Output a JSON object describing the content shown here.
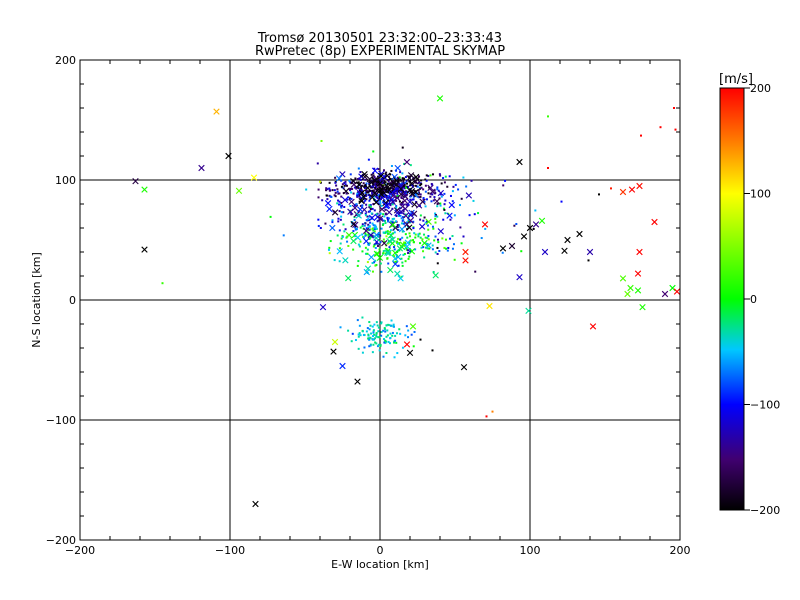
{
  "chart_data": {
    "type": "scatter",
    "title": "Tromsø 20130501 23:32:00–23:33:43",
    "subtitle": "RwPretec (8p) EXPERIMENTAL SKYMAP",
    "xlabel": "E-W location [km]",
    "ylabel": "N-S location [km]",
    "xlim": [
      -200,
      200
    ],
    "ylim": [
      -200,
      200
    ],
    "xticks": [
      "-200",
      "-100",
      "0",
      "100",
      "200"
    ],
    "yticks": [
      "-200",
      "-100",
      "0",
      "100",
      "200"
    ],
    "grid": true,
    "colorbar": {
      "label": "[m/s]",
      "min": -200,
      "max": 200,
      "ticks": [
        "-200",
        "-100",
        "0",
        "100",
        "200"
      ],
      "colors": [
        "#000000",
        "#400070",
        "#0000ff",
        "#00c8ff",
        "#00ff00",
        "#ffff00",
        "#ff8000",
        "#ff0000"
      ]
    },
    "clusters": [
      {
        "x": 5,
        "y": 92,
        "sx": 18,
        "sy": 6,
        "n": 320,
        "v": -130,
        "vs": 35,
        "marker": "dot"
      },
      {
        "x": -5,
        "y": 80,
        "sx": 16,
        "sy": 10,
        "n": 150,
        "v": -120,
        "vs": 30,
        "marker": "dot"
      },
      {
        "x": 10,
        "y": 50,
        "sx": 18,
        "sy": 12,
        "n": 200,
        "v": -10,
        "vs": 35,
        "marker": "dot"
      },
      {
        "x": 0,
        "y": 65,
        "sx": 12,
        "sy": 8,
        "n": 80,
        "v": -60,
        "vs": 25,
        "marker": "dot"
      },
      {
        "x": 5,
        "y": 97,
        "sx": 14,
        "sy": 4,
        "n": 110,
        "v": -190,
        "vs": 12,
        "marker": "dot"
      },
      {
        "x": 0,
        "y": -30,
        "sx": 10,
        "sy": 7,
        "n": 120,
        "v": -40,
        "vs": 20,
        "marker": "dot"
      },
      {
        "x": 40,
        "y": 70,
        "sx": 25,
        "sy": 20,
        "n": 70,
        "v": -100,
        "vs": 60,
        "marker": "dot"
      },
      {
        "x": 0,
        "y": 80,
        "sx": 30,
        "sy": 25,
        "n": 60,
        "v": -50,
        "vs": 60,
        "marker": "dot"
      },
      {
        "x": 5,
        "y": 80,
        "sx": 20,
        "sy": 15,
        "n": 90,
        "v": -130,
        "vs": 35,
        "marker": "cross"
      },
      {
        "x": 5,
        "y": 95,
        "sx": 12,
        "sy": 5,
        "n": 40,
        "v": -195,
        "vs": 8,
        "marker": "cross"
      },
      {
        "x": 5,
        "y": 40,
        "sx": 15,
        "sy": 12,
        "n": 40,
        "v": -20,
        "vs": 30,
        "marker": "cross"
      }
    ],
    "points": [
      {
        "x": -109,
        "y": 157,
        "v": 130,
        "m": "cross"
      },
      {
        "x": -101,
        "y": 120,
        "v": -200,
        "m": "cross"
      },
      {
        "x": -163,
        "y": 99,
        "v": -170,
        "m": "cross"
      },
      {
        "x": -157,
        "y": 92,
        "v": 10,
        "m": "cross"
      },
      {
        "x": -119,
        "y": 110,
        "v": -140,
        "m": "cross"
      },
      {
        "x": -157,
        "y": 42,
        "v": -200,
        "m": "cross"
      },
      {
        "x": -145,
        "y": 14,
        "v": 20,
        "m": "dot"
      },
      {
        "x": -84,
        "y": 102,
        "v": 100,
        "m": "cross"
      },
      {
        "x": -94,
        "y": 91,
        "v": 40,
        "m": "cross"
      },
      {
        "x": -83,
        "y": -170,
        "v": -200,
        "m": "cross"
      },
      {
        "x": -15,
        "y": -68,
        "v": -200,
        "m": "cross"
      },
      {
        "x": -38,
        "y": -6,
        "v": -120,
        "m": "cross"
      },
      {
        "x": -31,
        "y": -43,
        "v": -200,
        "m": "cross"
      },
      {
        "x": -25,
        "y": -55,
        "v": -90,
        "m": "cross"
      },
      {
        "x": -30,
        "y": -35,
        "v": 80,
        "m": "cross"
      },
      {
        "x": 40,
        "y": 168,
        "v": 10,
        "m": "cross"
      },
      {
        "x": 93,
        "y": 115,
        "v": -200,
        "m": "cross"
      },
      {
        "x": 108,
        "y": 66,
        "v": 10,
        "m": "cross"
      },
      {
        "x": 93,
        "y": 19,
        "v": -120,
        "m": "cross"
      },
      {
        "x": 73,
        "y": -5,
        "v": 110,
        "m": "cross"
      },
      {
        "x": 99,
        "y": -9,
        "v": -30,
        "m": "cross"
      },
      {
        "x": 56,
        "y": -56,
        "v": -200,
        "m": "cross"
      },
      {
        "x": 70,
        "y": 63,
        "v": 200,
        "m": "cross"
      },
      {
        "x": 57,
        "y": 40,
        "v": 190,
        "m": "cross"
      },
      {
        "x": 57,
        "y": 33,
        "v": 195,
        "m": "cross"
      },
      {
        "x": 82,
        "y": 43,
        "v": -200,
        "m": "cross"
      },
      {
        "x": 88,
        "y": 45,
        "v": -180,
        "m": "cross"
      },
      {
        "x": 96,
        "y": 53,
        "v": -200,
        "m": "cross"
      },
      {
        "x": 100,
        "y": 60,
        "v": -200,
        "m": "cross"
      },
      {
        "x": 104,
        "y": 63,
        "v": -140,
        "m": "cross"
      },
      {
        "x": 110,
        "y": 40,
        "v": -120,
        "m": "cross"
      },
      {
        "x": 125,
        "y": 50,
        "v": -200,
        "m": "cross"
      },
      {
        "x": 133,
        "y": 55,
        "v": -200,
        "m": "cross"
      },
      {
        "x": 140,
        "y": 40,
        "v": -130,
        "m": "cross"
      },
      {
        "x": 123,
        "y": 41,
        "v": -200,
        "m": "cross"
      },
      {
        "x": 142,
        "y": -22,
        "v": 200,
        "m": "cross"
      },
      {
        "x": 162,
        "y": 90,
        "v": 180,
        "m": "cross"
      },
      {
        "x": 168,
        "y": 92,
        "v": 200,
        "m": "cross"
      },
      {
        "x": 173,
        "y": 95,
        "v": 195,
        "m": "cross"
      },
      {
        "x": 183,
        "y": 65,
        "v": 200,
        "m": "cross"
      },
      {
        "x": 173,
        "y": 40,
        "v": 200,
        "m": "cross"
      },
      {
        "x": 172,
        "y": 22,
        "v": 200,
        "m": "cross"
      },
      {
        "x": 162,
        "y": 18,
        "v": 30,
        "m": "cross"
      },
      {
        "x": 165,
        "y": 5,
        "v": 40,
        "m": "cross"
      },
      {
        "x": 167,
        "y": 10,
        "v": 20,
        "m": "cross"
      },
      {
        "x": 172,
        "y": 8,
        "v": 10,
        "m": "cross"
      },
      {
        "x": 175,
        "y": -6,
        "v": 10,
        "m": "cross"
      },
      {
        "x": 190,
        "y": 5,
        "v": -150,
        "m": "cross"
      },
      {
        "x": 195,
        "y": 10,
        "v": 0,
        "m": "cross"
      },
      {
        "x": 198,
        "y": 7,
        "v": 200,
        "m": "cross"
      },
      {
        "x": 174,
        "y": 137,
        "v": 200,
        "m": "dot"
      },
      {
        "x": 187,
        "y": 144,
        "v": 200,
        "m": "dot"
      },
      {
        "x": 196,
        "y": 160,
        "v": 200,
        "m": "dot"
      },
      {
        "x": 197,
        "y": 142,
        "v": 200,
        "m": "dot"
      },
      {
        "x": 112,
        "y": 153,
        "v": 20,
        "m": "dot"
      },
      {
        "x": 154,
        "y": 93,
        "v": 190,
        "m": "dot"
      },
      {
        "x": 71,
        "y": -97,
        "v": 200,
        "m": "dot"
      },
      {
        "x": 75,
        "y": -93,
        "v": 150,
        "m": "dot"
      },
      {
        "x": 139,
        "y": 33,
        "v": -200,
        "m": "dot"
      },
      {
        "x": 112,
        "y": 110,
        "v": 200,
        "m": "dot"
      },
      {
        "x": 146,
        "y": 88,
        "v": -200,
        "m": "dot"
      },
      {
        "x": 121,
        "y": 82,
        "v": -100,
        "m": "dot"
      },
      {
        "x": 27,
        "y": -33,
        "v": -200,
        "m": "dot"
      },
      {
        "x": 35,
        "y": -42,
        "v": -200,
        "m": "dot"
      },
      {
        "x": 20,
        "y": -44,
        "v": -200,
        "m": "cross"
      },
      {
        "x": 18,
        "y": -37,
        "v": 200,
        "m": "cross"
      },
      {
        "x": 22,
        "y": -22,
        "v": 30,
        "m": "cross"
      }
    ]
  }
}
